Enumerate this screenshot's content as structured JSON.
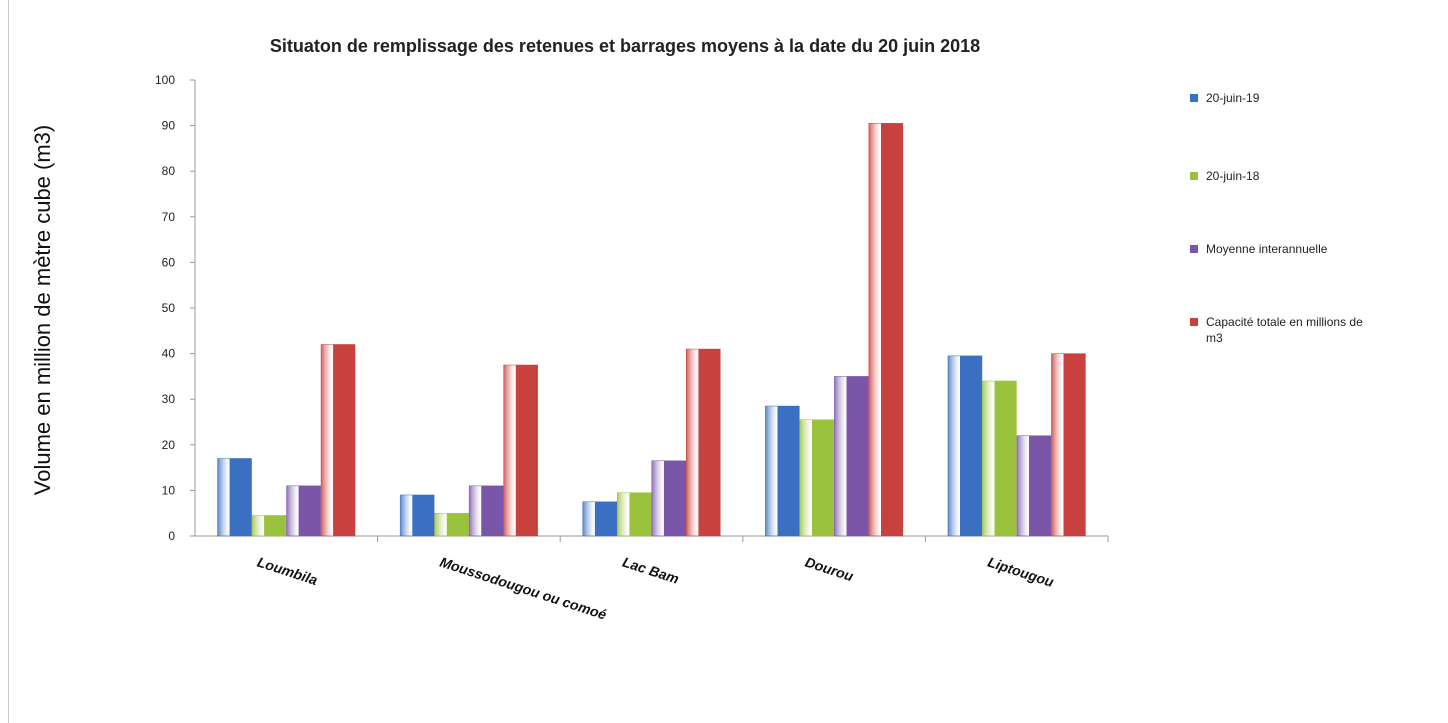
{
  "chart_data": {
    "type": "bar",
    "title": "Situaton de remplissage des retenues et barrages moyens à la date du 20 juin 2018",
    "xlabel": "",
    "ylabel": "Volume en million de mètre cube (m3)",
    "ylim": [
      0,
      100
    ],
    "yticks": [
      0,
      10,
      20,
      30,
      40,
      50,
      60,
      70,
      80,
      90,
      100
    ],
    "grid": false,
    "legend_position": "right",
    "categories": [
      "Loumbila",
      "Moussodougou ou comoé",
      "Lac Bam",
      "Dourou",
      "Liptougou"
    ],
    "series": [
      {
        "name": "20-juin-19",
        "color": "#3b6fc2",
        "values": [
          17,
          9,
          7.5,
          28.5,
          39.5
        ]
      },
      {
        "name": "20-juin-18",
        "color": "#9bc23c",
        "values": [
          4.5,
          5,
          9.5,
          25.5,
          34
        ]
      },
      {
        "name": "Moyenne interannuelle",
        "color": "#7b56a8",
        "values": [
          11,
          11,
          16.5,
          35,
          22
        ]
      },
      {
        "name": "Capacité totale en millions de m3",
        "color": "#c8413f",
        "values": [
          42,
          37.5,
          41,
          90.5,
          40
        ]
      }
    ]
  }
}
